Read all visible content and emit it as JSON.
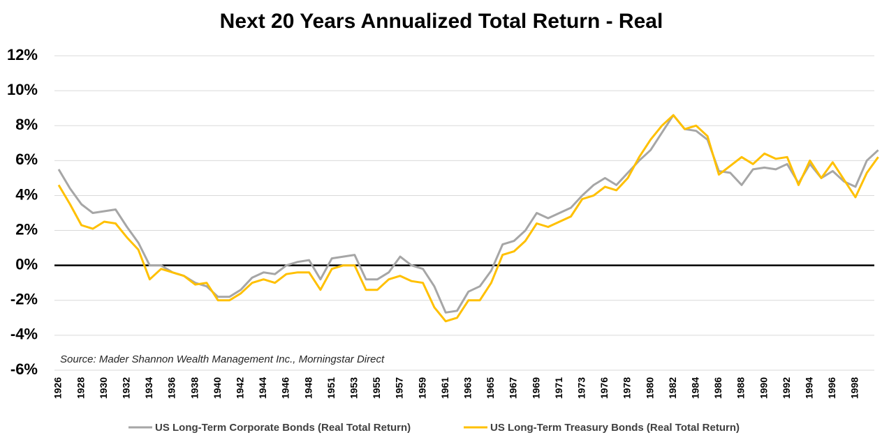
{
  "chart_data": {
    "type": "line",
    "title": "Next 20 Years Annualized Total Return - Real",
    "annotation": "Source: Mader Shannon Wealth Management Inc., Morningstar Direct",
    "categories": [
      "1926",
      null,
      "1928",
      null,
      "1930",
      null,
      "1932",
      null,
      "1934",
      null,
      "1936",
      null,
      "1938",
      null,
      "1940",
      null,
      "1942",
      null,
      "1944",
      null,
      "1946",
      null,
      "1948",
      null,
      "1951",
      null,
      "1953",
      null,
      "1955",
      null,
      "1957",
      null,
      "1959",
      null,
      "1961",
      null,
      "1963",
      null,
      "1965",
      null,
      "1967",
      null,
      "1969",
      null,
      "1971",
      null,
      "1973",
      null,
      "1976",
      null,
      "1978",
      null,
      "1980",
      null,
      "1982",
      null,
      "1984",
      null,
      "1986",
      null,
      "1988",
      null,
      "1990",
      null,
      "1992",
      null,
      "1994",
      null,
      "1996",
      null,
      "1998",
      null,
      null
    ],
    "series": [
      {
        "name": "US Long-Term Corporate Bonds (Real Total Return)",
        "color": "#a6a6a6",
        "values": [
          5.5,
          4.4,
          3.5,
          3.0,
          3.1,
          3.2,
          2.2,
          1.3,
          0.0,
          0.0,
          -0.4,
          -0.6,
          -1.0,
          -1.2,
          -1.8,
          -1.8,
          -1.4,
          -0.7,
          -0.4,
          -0.5,
          0.0,
          0.2,
          0.3,
          -0.8,
          0.4,
          0.5,
          0.6,
          -0.8,
          -0.8,
          -0.4,
          0.5,
          0.0,
          -0.2,
          -1.2,
          -2.7,
          -2.6,
          -1.5,
          -1.2,
          -0.3,
          1.2,
          1.4,
          2.0,
          3.0,
          2.7,
          3.0,
          3.3,
          4.0,
          4.6,
          5.0,
          4.6,
          5.3,
          6.0,
          6.6,
          7.6,
          8.6,
          7.8,
          7.7,
          7.2,
          5.4,
          5.3,
          4.6,
          5.5,
          5.6,
          5.5,
          5.8,
          4.7,
          5.8,
          5.0,
          5.4,
          4.8,
          4.5,
          6.0,
          6.6
        ]
      },
      {
        "name": "US Long-Term Treasury Bonds (Real Total Return)",
        "color": "#ffc000",
        "values": [
          4.6,
          3.5,
          2.3,
          2.1,
          2.5,
          2.4,
          1.6,
          0.9,
          -0.8,
          -0.2,
          -0.4,
          -0.6,
          -1.1,
          -1.0,
          -2.0,
          -2.0,
          -1.6,
          -1.0,
          -0.8,
          -1.0,
          -0.5,
          -0.4,
          -0.4,
          -1.4,
          -0.2,
          0.0,
          0.0,
          -1.4,
          -1.4,
          -0.8,
          -0.6,
          -0.9,
          -1.0,
          -2.4,
          -3.2,
          -3.0,
          -2.0,
          -2.0,
          -1.0,
          0.6,
          0.8,
          1.4,
          2.4,
          2.2,
          2.5,
          2.8,
          3.8,
          4.0,
          4.5,
          4.3,
          5.0,
          6.2,
          7.2,
          8.0,
          8.6,
          7.8,
          8.0,
          7.4,
          5.2,
          5.7,
          6.2,
          5.8,
          6.4,
          6.1,
          6.2,
          4.6,
          6.0,
          5.0,
          5.9,
          4.9,
          3.9,
          5.3,
          6.2
        ]
      }
    ],
    "ylim": [
      -6,
      12
    ],
    "yticks": [
      {
        "value": -6,
        "label": "-6%"
      },
      {
        "value": -4,
        "label": "-4%"
      },
      {
        "value": -2,
        "label": "-2%"
      },
      {
        "value": 0,
        "label": "0%"
      },
      {
        "value": 2,
        "label": "2%"
      },
      {
        "value": 4,
        "label": "4%"
      },
      {
        "value": 6,
        "label": "6%"
      },
      {
        "value": 8,
        "label": "8%"
      },
      {
        "value": 10,
        "label": "10%"
      },
      {
        "value": 12,
        "label": "12%"
      }
    ],
    "grid": true,
    "zero_line": true,
    "legend": "bottom"
  }
}
